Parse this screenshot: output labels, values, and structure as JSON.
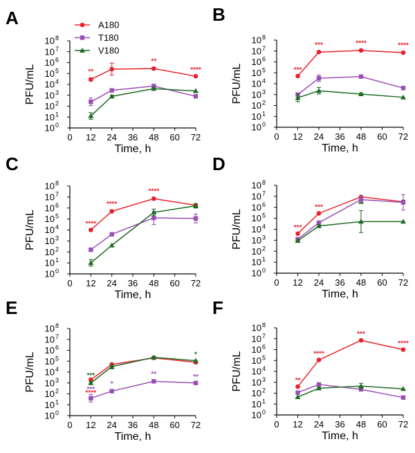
{
  "legend": [
    {
      "name": "A180",
      "color": "#e8222b",
      "marker": "circle"
    },
    {
      "name": "T180",
      "color": "#9a4fb6",
      "marker": "square"
    },
    {
      "name": "V180",
      "color": "#1d6b22",
      "marker": "triangle"
    }
  ],
  "chart_data": [
    {
      "type": "line",
      "panel": "A",
      "x": [
        12,
        24,
        48,
        72
      ],
      "xlim": [
        0,
        72
      ],
      "xticks": [
        0,
        12,
        24,
        36,
        48,
        60,
        72
      ],
      "xlabel": "Time, h",
      "ylabel": "PFU/mL",
      "ylim_log10": [
        0,
        8
      ],
      "yscale": "log",
      "series": [
        {
          "name": "A180",
          "log10": [
            4.45,
            5.4,
            5.45,
            4.75
          ],
          "err": [
            0.15,
            0.55,
            0.1,
            0.05
          ],
          "sig": [
            "**",
            "",
            "**",
            "****"
          ]
        },
        {
          "name": "T180",
          "log10": [
            2.4,
            3.45,
            3.85,
            2.9
          ],
          "err": [
            0.35,
            0.1,
            0.1,
            0.1
          ],
          "sig": [
            "",
            "",
            "",
            ""
          ]
        },
        {
          "name": "V180",
          "log10": [
            1.1,
            2.9,
            3.6,
            3.4
          ],
          "err": [
            0.3,
            0.1,
            0.1,
            0.05
          ],
          "sig": [
            "",
            "",
            "",
            ""
          ]
        }
      ]
    },
    {
      "type": "line",
      "panel": "B",
      "x": [
        12,
        24,
        48,
        72
      ],
      "xlim": [
        0,
        72
      ],
      "xticks": [
        0,
        12,
        24,
        36,
        48,
        60,
        72
      ],
      "xlabel": "Time, h",
      "ylabel": "PFU/mL",
      "ylim_log10": [
        0,
        8
      ],
      "yscale": "log",
      "series": [
        {
          "name": "A180",
          "log10": [
            4.7,
            6.9,
            7.05,
            6.85
          ],
          "err": [
            0.05,
            0.1,
            0.1,
            0.1
          ],
          "sig": [
            "***",
            "***",
            "****",
            "****"
          ]
        },
        {
          "name": "T180",
          "log10": [
            3.0,
            4.5,
            4.65,
            3.6
          ],
          "err": [
            0.1,
            0.3,
            0.1,
            0.05
          ],
          "sig": [
            "",
            "",
            "",
            ""
          ]
        },
        {
          "name": "V180",
          "log10": [
            2.7,
            3.35,
            3.05,
            2.75
          ],
          "err": [
            0.35,
            0.3,
            0.1,
            0.05
          ],
          "sig": [
            "",
            "",
            "",
            ""
          ]
        }
      ]
    },
    {
      "type": "line",
      "panel": "C",
      "x": [
        12,
        24,
        48,
        72
      ],
      "xlim": [
        0,
        72
      ],
      "xticks": [
        0,
        12,
        24,
        36,
        48,
        60,
        72
      ],
      "xlabel": "Time, h",
      "ylabel": "PFU/mL",
      "ylim_log10": [
        0,
        8
      ],
      "yscale": "log",
      "series": [
        {
          "name": "A180",
          "log10": [
            4.0,
            5.7,
            6.85,
            6.25
          ],
          "err": [
            0.05,
            0.1,
            0.1,
            0.1
          ],
          "sig": [
            "****",
            "****",
            "****",
            ""
          ]
        },
        {
          "name": "T180",
          "log10": [
            2.2,
            3.6,
            5.1,
            5.05
          ],
          "err": [
            0.1,
            0.1,
            0.6,
            0.4
          ],
          "sig": [
            "",
            "",
            "",
            "*"
          ]
        },
        {
          "name": "V180",
          "log10": [
            1.0,
            2.6,
            5.6,
            6.2
          ],
          "err": [
            0.3,
            0.05,
            0.3,
            0.2
          ],
          "sig": [
            "",
            "",
            "",
            ""
          ]
        }
      ]
    },
    {
      "type": "line",
      "panel": "D",
      "x": [
        12,
        24,
        48,
        72
      ],
      "xlim": [
        0,
        72
      ],
      "xticks": [
        0,
        12,
        24,
        36,
        48,
        60,
        72
      ],
      "xlabel": "Time, h",
      "ylabel": "PFU/mL",
      "ylim_log10": [
        0,
        8
      ],
      "yscale": "log",
      "series": [
        {
          "name": "A180",
          "log10": [
            3.6,
            5.45,
            6.95,
            6.5
          ],
          "err": [
            0.05,
            0.05,
            0.1,
            0.15
          ],
          "sig": [
            "***",
            "***",
            "",
            ""
          ]
        },
        {
          "name": "T180",
          "log10": [
            3.1,
            4.6,
            6.7,
            6.45
          ],
          "err": [
            0.1,
            0.1,
            0.35,
            0.7
          ],
          "sig": [
            "",
            "",
            "",
            ""
          ]
        },
        {
          "name": "V180",
          "log10": [
            2.95,
            4.3,
            4.7,
            4.7
          ],
          "err": [
            0.1,
            0.1,
            1.0,
            0.05
          ],
          "sig": [
            "",
            "",
            "**",
            ""
          ]
        }
      ]
    },
    {
      "type": "line",
      "panel": "E",
      "x": [
        12,
        24,
        48,
        72
      ],
      "xlim": [
        0,
        72
      ],
      "xticks": [
        0,
        12,
        24,
        36,
        48,
        60,
        72
      ],
      "xlabel": "Time, h",
      "ylabel": "PFU/mL",
      "ylim_log10": [
        0,
        8
      ],
      "yscale": "log",
      "series": [
        {
          "name": "A180",
          "log10": [
            3.3,
            4.7,
            5.3,
            4.9
          ],
          "err": [
            0.1,
            0.1,
            0.1,
            0.1
          ],
          "sig": [
            "****",
            "",
            "",
            ""
          ]
        },
        {
          "name": "T180",
          "log10": [
            1.6,
            2.25,
            3.15,
            3.0
          ],
          "err": [
            0.35,
            0.1,
            0.1,
            0.05
          ],
          "sig": [
            "***",
            "*",
            "**",
            "**"
          ]
        },
        {
          "name": "V180",
          "log10": [
            3.0,
            4.5,
            5.35,
            5.05
          ],
          "err": [
            0.1,
            0.2,
            0.1,
            0.05
          ],
          "sig": [
            "***",
            "",
            "",
            "*"
          ]
        }
      ]
    },
    {
      "type": "line",
      "panel": "F",
      "x": [
        12,
        24,
        48,
        72
      ],
      "xlim": [
        0,
        72
      ],
      "xticks": [
        0,
        12,
        24,
        36,
        48,
        60,
        72
      ],
      "xlabel": "Time, h",
      "ylabel": "PFU/mL",
      "ylim_log10": [
        0,
        8
      ],
      "yscale": "log",
      "series": [
        {
          "name": "A180",
          "log10": [
            2.6,
            5.05,
            6.85,
            6.0
          ],
          "err": [
            0.05,
            0.05,
            0.05,
            0.05
          ],
          "sig": [
            "**",
            "****",
            "***",
            "****"
          ]
        },
        {
          "name": "T180",
          "log10": [
            2.05,
            2.8,
            2.35,
            1.6
          ],
          "err": [
            0.05,
            0.05,
            0.05,
            0.05
          ],
          "sig": [
            "",
            "",
            "",
            ""
          ]
        },
        {
          "name": "V180",
          "log10": [
            1.65,
            2.45,
            2.65,
            2.4
          ],
          "err": [
            0.05,
            0.1,
            0.25,
            0.05
          ],
          "sig": [
            "",
            "",
            "",
            ""
          ]
        }
      ]
    }
  ]
}
